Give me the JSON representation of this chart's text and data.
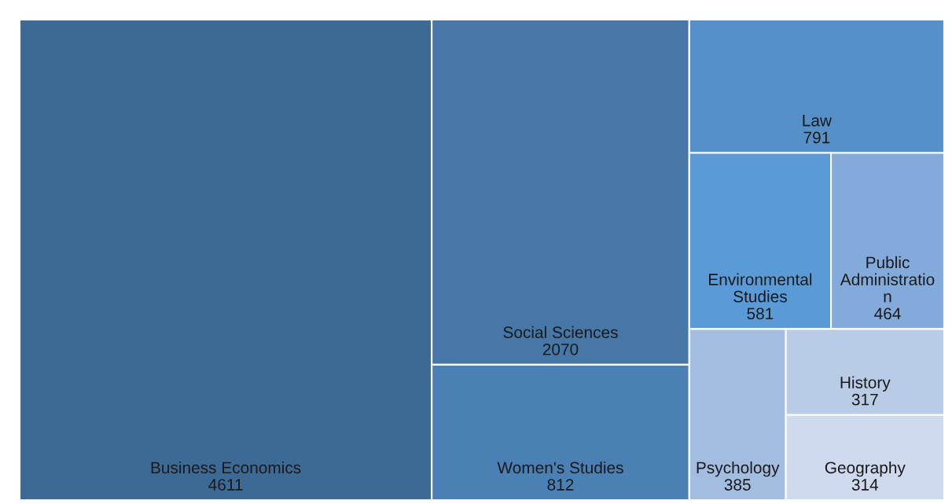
{
  "chart_data": {
    "type": "other",
    "categories": [
      "Business Economics",
      "Social Sciences",
      "Women's Studies",
      "Law",
      "Environmental Studies",
      "Public Administration",
      "Psychology",
      "History",
      "Geography"
    ],
    "values": [
      4611,
      2070,
      812,
      791,
      581,
      464,
      385,
      317,
      314
    ],
    "colors": [
      "#3d6a94",
      "#4677a6",
      "#4a80b4",
      "#5591c8",
      "#5a9ad6",
      "#82abdb",
      "#a3bde0",
      "#b9cce6",
      "#cfdaee"
    ],
    "data_labels": true
  }
}
